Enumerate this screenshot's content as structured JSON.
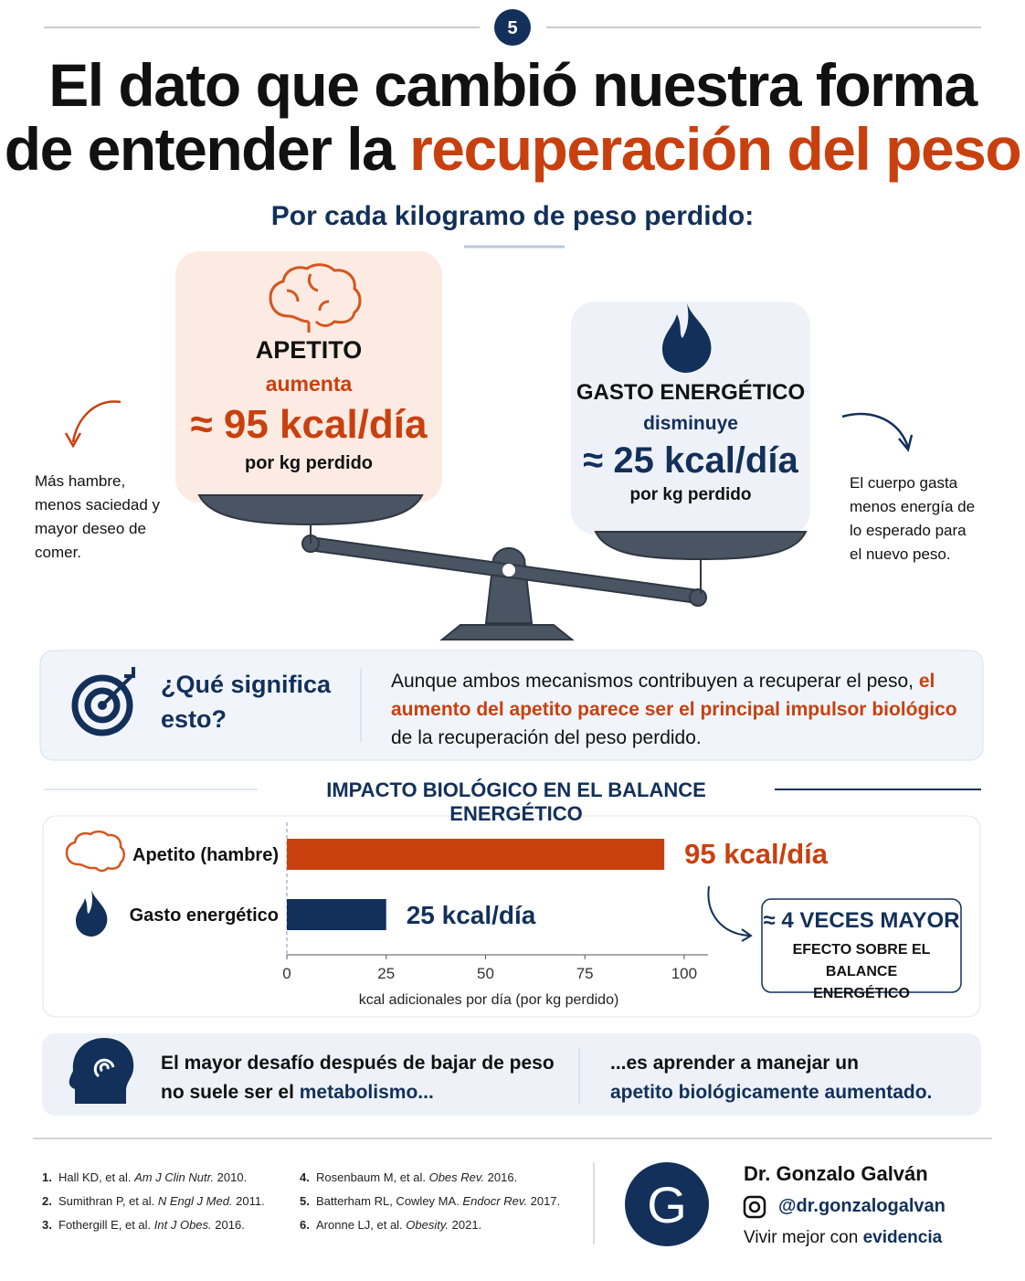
{
  "badge": "5",
  "header": {
    "title_line1": "El dato que cambió nuestra forma",
    "title_line2_a": "de entender la",
    "title_line2_b": "recuperación del peso",
    "subtitle": "Por cada kilogramo de peso perdido:"
  },
  "appetite": {
    "title": "APETITO",
    "verb": "aumenta",
    "value": "≈ 95 kcal/día",
    "per": "por kg perdido",
    "note": "Más hambre, menos saciedad y mayor deseo de comer."
  },
  "expenditure": {
    "title": "GASTO ENERGÉTICO",
    "verb": "disminuye",
    "value": "≈ 25 kcal/día",
    "per": "por kg perdido",
    "note": "El cuerpo gasta menos energía de lo esperado para el nuevo peso."
  },
  "meaning": {
    "question": "¿Qué significa esto?",
    "text_a": "Aunque ambos mecanismos contribuyen a recuperar el peso,",
    "text_b": "el aumento del apetito parece ser el principal impulsor biológico",
    "text_c": "de la recuperación del peso perdido."
  },
  "chart_data": {
    "type": "bar",
    "orientation": "horizontal",
    "title": "IMPACTO BIOLÓGICO EN EL BALANCE ENERGÉTICO",
    "categories": [
      "Apetito (hambre)",
      "Gasto energético"
    ],
    "values": [
      95,
      25
    ],
    "value_labels": [
      "95 kcal/día",
      "25 kcal/día"
    ],
    "colors": [
      "#c9400f",
      "#12305a"
    ],
    "xlim": [
      0,
      106
    ],
    "xticks": [
      0,
      25,
      50,
      75,
      100
    ],
    "xlabel": "kcal adicionales por día (por kg perdido)",
    "annotation": {
      "title": "≈ 4 VECES MAYOR",
      "text": "EFECTO SOBRE EL BALANCE ENERGÉTICO"
    }
  },
  "bottom": {
    "text_a": "El mayor desafío después de bajar de peso no suele ser el",
    "text_b": "metabolismo...",
    "text_c": "...es aprender a manejar un",
    "text_d": "apetito biológicamente aumentado."
  },
  "references": [
    {
      "num": "1.",
      "authors": "Hall KD, et al.",
      "journal": "Am J Clin Nutr.",
      "year": "2010."
    },
    {
      "num": "2.",
      "authors": "Sumithran P, et al.",
      "journal": "N Engl J Med.",
      "year": "2011."
    },
    {
      "num": "3.",
      "authors": "Fothergill E, et al.",
      "journal": "Int J Obes.",
      "year": "2016."
    },
    {
      "num": "4.",
      "authors": "Rosenbaum M, et al.",
      "journal": "Obes Rev.",
      "year": "2016."
    },
    {
      "num": "5.",
      "authors": "Batterham RL, Cowley MA.",
      "journal": "Endocr Rev.",
      "year": "2017."
    },
    {
      "num": "6.",
      "authors": "Aronne LJ, et al.",
      "journal": "Obesity.",
      "year": "2021."
    }
  ],
  "author": {
    "logo": "G",
    "name": "Dr. Gonzalo Galván",
    "handle": "@dr.gonzalogalvan",
    "tagline_a": "Vivir mejor con",
    "tagline_b": "evidencia"
  }
}
